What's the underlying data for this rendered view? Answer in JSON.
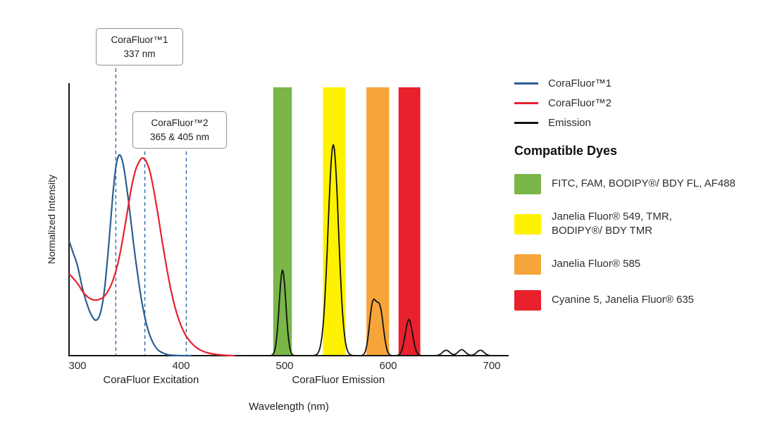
{
  "page": {
    "background": "#ffffff"
  },
  "chart_data": {
    "type": "line",
    "title": "",
    "xlabel": "Wavelength (nm)",
    "ylabel": "Normalized Intensity",
    "x_ticks": [
      300,
      400,
      500,
      600,
      700
    ],
    "xlim": [
      292,
      716
    ],
    "ylim": [
      0,
      1
    ],
    "grid": false,
    "marker_color": "#2f6ca8",
    "axis_section_labels": [
      {
        "label": "CoraFluor Excitation",
        "center_nm": 371
      },
      {
        "label": "CoraFluor Emission",
        "center_nm": 552
      }
    ],
    "callouts": [
      {
        "line1": "CoraFluor™1",
        "line2": "337 nm"
      },
      {
        "line1": "CoraFluor™2",
        "line2": "365 & 405 nm"
      }
    ],
    "markers": [
      {
        "nm": 337,
        "series": "CoraFluor™1",
        "callout": 1
      },
      {
        "nm": 365,
        "series": "CoraFluor™2",
        "callout": 2
      },
      {
        "nm": 405,
        "series": "CoraFluor™2",
        "callout": 2
      }
    ],
    "filter_bands": [
      {
        "name": "FITC/FAM/BODIPY FL/AF488 band",
        "color": "#7ab648",
        "from_nm": 489,
        "to_nm": 507
      },
      {
        "name": "JF549/TMR band",
        "color": "#fff200",
        "from_nm": 537,
        "to_nm": 559
      },
      {
        "name": "JF585 band",
        "color": "#f5a53a",
        "from_nm": 579,
        "to_nm": 601
      },
      {
        "name": "Cy5/JF635 band",
        "color": "#e8212d",
        "from_nm": 610,
        "to_nm": 631
      }
    ],
    "series": [
      {
        "name": "CoraFluor™1 excitation",
        "color": "#2a5e92",
        "points": [
          [
            292,
            0.42
          ],
          [
            296,
            0.375
          ],
          [
            300,
            0.33
          ],
          [
            305,
            0.245
          ],
          [
            310,
            0.18
          ],
          [
            314,
            0.145
          ],
          [
            318,
            0.13
          ],
          [
            322,
            0.155
          ],
          [
            326,
            0.24
          ],
          [
            330,
            0.4
          ],
          [
            334,
            0.585
          ],
          [
            337,
            0.69
          ],
          [
            340,
            0.735
          ],
          [
            343,
            0.72
          ],
          [
            346,
            0.66
          ],
          [
            350,
            0.545
          ],
          [
            354,
            0.415
          ],
          [
            358,
            0.3
          ],
          [
            362,
            0.2
          ],
          [
            366,
            0.125
          ],
          [
            370,
            0.073
          ],
          [
            374,
            0.04
          ],
          [
            378,
            0.02
          ],
          [
            383,
            0.009
          ],
          [
            388,
            0.003
          ],
          [
            394,
            0.001
          ],
          [
            400,
            0
          ],
          [
            410,
            0
          ]
        ]
      },
      {
        "name": "CoraFluor™2 excitation",
        "color": "#e8212d",
        "points": [
          [
            292,
            0.3
          ],
          [
            300,
            0.265
          ],
          [
            305,
            0.235
          ],
          [
            310,
            0.215
          ],
          [
            315,
            0.205
          ],
          [
            320,
            0.205
          ],
          [
            325,
            0.215
          ],
          [
            330,
            0.24
          ],
          [
            335,
            0.285
          ],
          [
            340,
            0.355
          ],
          [
            344,
            0.435
          ],
          [
            348,
            0.525
          ],
          [
            352,
            0.615
          ],
          [
            356,
            0.68
          ],
          [
            360,
            0.715
          ],
          [
            363,
            0.725
          ],
          [
            366,
            0.715
          ],
          [
            370,
            0.675
          ],
          [
            374,
            0.6
          ],
          [
            378,
            0.51
          ],
          [
            382,
            0.415
          ],
          [
            386,
            0.325
          ],
          [
            390,
            0.245
          ],
          [
            394,
            0.18
          ],
          [
            398,
            0.13
          ],
          [
            403,
            0.085
          ],
          [
            408,
            0.055
          ],
          [
            414,
            0.032
          ],
          [
            420,
            0.018
          ],
          [
            427,
            0.009
          ],
          [
            435,
            0.004
          ],
          [
            444,
            0.001
          ],
          [
            452,
            0
          ]
        ]
      },
      {
        "name": "Emission",
        "color": "#111111",
        "peaks": [
          {
            "center": 498,
            "sigma": 3.2,
            "height": 0.315
          },
          {
            "center": 547,
            "sigma": 5.0,
            "height": 0.775
          },
          {
            "center": 585,
            "sigma": 3.2,
            "height": 0.18
          },
          {
            "center": 592,
            "sigma": 3.4,
            "height": 0.17
          },
          {
            "center": 620,
            "sigma": 3.5,
            "height": 0.133
          },
          {
            "center": 656,
            "sigma": 3.5,
            "height": 0.02
          },
          {
            "center": 671,
            "sigma": 3.5,
            "height": 0.022
          },
          {
            "center": 689,
            "sigma": 3.5,
            "height": 0.02
          }
        ]
      }
    ]
  },
  "legend": {
    "series": [
      {
        "label": "CoraFluor™1",
        "color": "#2a5e92"
      },
      {
        "label": "CoraFluor™2",
        "color": "#e8212d"
      },
      {
        "label": "Emission",
        "color": "#111111"
      }
    ],
    "compatible_dyes_title": "Compatible Dyes",
    "dyes": [
      {
        "label": "FITC, FAM, BODIPY®/ BDY FL, AF488",
        "color": "#7ab648"
      },
      {
        "label": "Janelia Fluor® 549, TMR,\nBODIPY®/ BDY TMR",
        "color": "#fff200"
      },
      {
        "label": "Janelia Fluor® 585",
        "color": "#f5a53a"
      },
      {
        "label": "Cyanine 5, Janelia Fluor® 635",
        "color": "#e8212d"
      }
    ]
  }
}
